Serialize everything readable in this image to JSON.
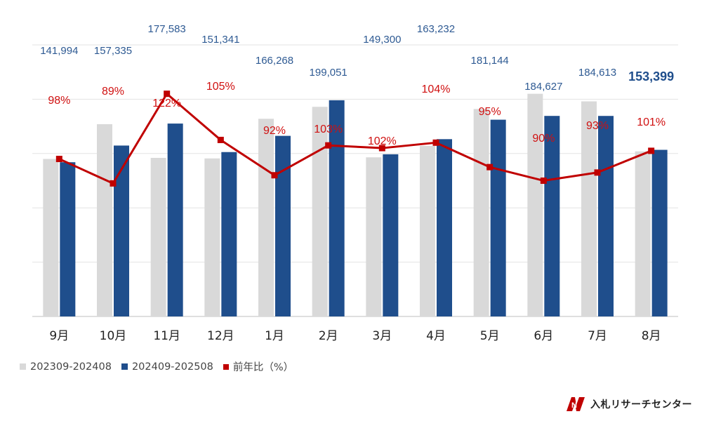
{
  "chart_data": {
    "type": "bar",
    "categories": [
      "9月",
      "10月",
      "11月",
      "12月",
      "1月",
      "2月",
      "3月",
      "4月",
      "5月",
      "6月",
      "7月",
      "8月"
    ],
    "series": [
      {
        "name": "202309-202408",
        "type": "bar",
        "color": "#d9d9d9",
        "values": [
          145000,
          177000,
          146000,
          145500,
          182000,
          193000,
          146500,
          157000,
          191000,
          205000,
          198000,
          152000
        ]
      },
      {
        "name": "202409-202508",
        "type": "bar",
        "color": "#1f4e8c",
        "values": [
          141994,
          157335,
          177583,
          151341,
          166268,
          199051,
          149300,
          163232,
          181144,
          184627,
          184613,
          153399
        ],
        "labels": [
          "141,994",
          "157,335",
          "177,583",
          "151,341",
          "166,268",
          "199,051",
          "149,300",
          "163,232",
          "181,144",
          "184,627",
          "184,613",
          "153,399"
        ]
      },
      {
        "name": "前年比（%）",
        "type": "line",
        "color": "#c00000",
        "values": [
          98,
          89,
          122,
          105,
          92,
          103,
          102,
          104,
          95,
          90,
          93,
          101
        ],
        "labels": [
          "98%",
          "89%",
          "122%",
          "105%",
          "92%",
          "103%",
          "102%",
          "104%",
          "95%",
          "90%",
          "93%",
          "101%"
        ]
      }
    ],
    "ylim_bar": [
      0,
      250000
    ],
    "ylim_line": [
      40,
      140
    ],
    "grid": true,
    "legend": "bottom-left"
  },
  "branding": {
    "logo_text": "入札リサーチセンター",
    "logo_mark": "N"
  }
}
